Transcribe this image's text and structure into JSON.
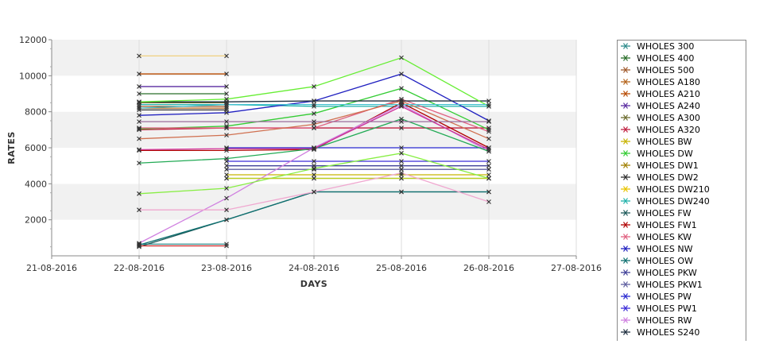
{
  "chart_data": {
    "type": "line",
    "xlabel": "DAYS",
    "ylabel": "RATES",
    "x_ticks": [
      "21-08-2016",
      "22-08-2016",
      "23-08-2016",
      "24-08-2016",
      "25-08-2016",
      "26-08-2016",
      "27-08-2016"
    ],
    "y_ticks": [
      2000,
      4000,
      6000,
      8000,
      10000,
      12000
    ],
    "ylim": [
      0,
      12000
    ],
    "grid": "horizontal bands",
    "legend_position": "right",
    "series": [
      {
        "name": "WHOLES 300",
        "color": "#2e8b8b",
        "values": [
          650,
          650,
          null,
          null,
          null
        ]
      },
      {
        "name": "WHOLES 400",
        "color": "#2a6e2a",
        "values": [
          9000,
          9000,
          null,
          null,
          null
        ]
      },
      {
        "name": "WHOLES 500",
        "color": "#a05a2c",
        "values": [
          8300,
          8300,
          null,
          null,
          null
        ]
      },
      {
        "name": "WHOLES A180",
        "color": "#b5651d",
        "values": [
          8200,
          8200,
          null,
          null,
          null
        ]
      },
      {
        "name": "WHOLES A210",
        "color": "#b84a00",
        "values": [
          10100,
          10100,
          null,
          null,
          null
        ]
      },
      {
        "name": "WHOLES A240",
        "color": "#5a2ca0",
        "values": [
          9400,
          9400,
          null,
          null,
          null
        ]
      },
      {
        "name": "WHOLES A300",
        "color": "#6b6b2e",
        "values": [
          8500,
          8500,
          null,
          null,
          null
        ]
      },
      {
        "name": "WHOLES A320",
        "color": "#c02040",
        "values": [
          7000,
          7100,
          7100,
          7100,
          7100
        ]
      },
      {
        "name": "WHOLES BW",
        "color": "#c8b400",
        "values": [
          null,
          4500,
          4500,
          4500,
          4500
        ]
      },
      {
        "name": "WHOLES DW",
        "color": "#33cc33",
        "values": [
          7050,
          7200,
          7900,
          9300,
          7000
        ]
      },
      {
        "name": "WHOLES DW1",
        "color": "#a08000",
        "values": [
          null,
          4300,
          4300,
          4300,
          4300
        ]
      },
      {
        "name": "WHOLES DW2",
        "color": "#2e2e2e",
        "values": [
          8100,
          8100,
          null,
          null,
          null
        ]
      },
      {
        "name": "WHOLES DW210",
        "color": "#e8c400",
        "values": [
          null,
          null,
          null,
          null,
          null
        ]
      },
      {
        "name": "WHOLES DW240",
        "color": "#20b2aa",
        "values": [
          8400,
          8400,
          8300,
          8300,
          8300
        ]
      },
      {
        "name": "WHOLES FW",
        "color": "#1e5a5a",
        "values": [
          500,
          2000,
          3550,
          3550,
          3550
        ]
      },
      {
        "name": "WHOLES FW1",
        "color": "#b00000",
        "values": [
          5850,
          5850,
          5900,
          8500,
          6000
        ]
      },
      {
        "name": "WHOLES KW",
        "color": "#e06080",
        "values": [
          7100,
          7100,
          7100,
          8700,
          6900
        ]
      },
      {
        "name": "WHOLES NW",
        "color": "#2020c0",
        "values": [
          7800,
          7950,
          8600,
          10100,
          7500
        ]
      },
      {
        "name": "WHOLES OW",
        "color": "#0e7070",
        "values": [
          600,
          2000,
          3550,
          3550,
          3550
        ]
      },
      {
        "name": "WHOLES PKW",
        "color": "#404098",
        "values": [
          null,
          5000,
          5000,
          5000,
          5000
        ]
      },
      {
        "name": "WHOLES PKW1",
        "color": "#6060a0",
        "values": [
          null,
          4800,
          4800,
          4800,
          4800
        ]
      },
      {
        "name": "WHOLES PW",
        "color": "#2828d0",
        "values": [
          null,
          6000,
          6000,
          6000,
          6000
        ]
      },
      {
        "name": "WHOLES PW1",
        "color": "#3a2ad8",
        "values": [
          null,
          5250,
          5250,
          5250,
          5250
        ]
      },
      {
        "name": "WHOLES RW",
        "color": "#d080e0",
        "values": [
          700,
          3200,
          6000,
          8400,
          5800
        ]
      },
      {
        "name": "WHOLES S240",
        "color": "#203040",
        "values": [
          8550,
          8550,
          8600,
          8600,
          8600
        ]
      },
      {
        "name": "",
        "color": "#f0d080",
        "values": [
          11100,
          11100,
          null,
          null,
          null
        ]
      },
      {
        "name": "",
        "color": "#d07050",
        "values": [
          6500,
          6700,
          7300,
          8600,
          6500
        ]
      },
      {
        "name": "",
        "color": "#88ee44",
        "values": [
          3450,
          3750,
          4850,
          5700,
          4300
        ]
      },
      {
        "name": "",
        "color": "#66ee33",
        "values": [
          8550,
          8700,
          9400,
          11000,
          8300
        ]
      },
      {
        "name": "",
        "color": "#b8d020",
        "values": [
          null,
          4300,
          4300,
          4300,
          4300
        ]
      },
      {
        "name": "",
        "color": "#f0a8d0",
        "values": [
          2550,
          2550,
          3550,
          4600,
          3000
        ]
      },
      {
        "name": "",
        "color": "#40c0d0",
        "values": [
          8200,
          8400,
          8400,
          8400,
          8400
        ]
      },
      {
        "name": "",
        "color": "#22aa55",
        "values": [
          5150,
          5400,
          5950,
          7600,
          5800
        ]
      },
      {
        "name": "",
        "color": "#cc3399",
        "values": [
          5900,
          5950,
          5950,
          8300,
          5900
        ]
      },
      {
        "name": "",
        "color": "#9a6a9a",
        "values": [
          7450,
          7450,
          7450,
          7450,
          7450
        ]
      },
      {
        "name": "",
        "color": "#cc2222",
        "values": [
          550,
          550,
          null,
          null,
          null
        ]
      }
    ]
  }
}
